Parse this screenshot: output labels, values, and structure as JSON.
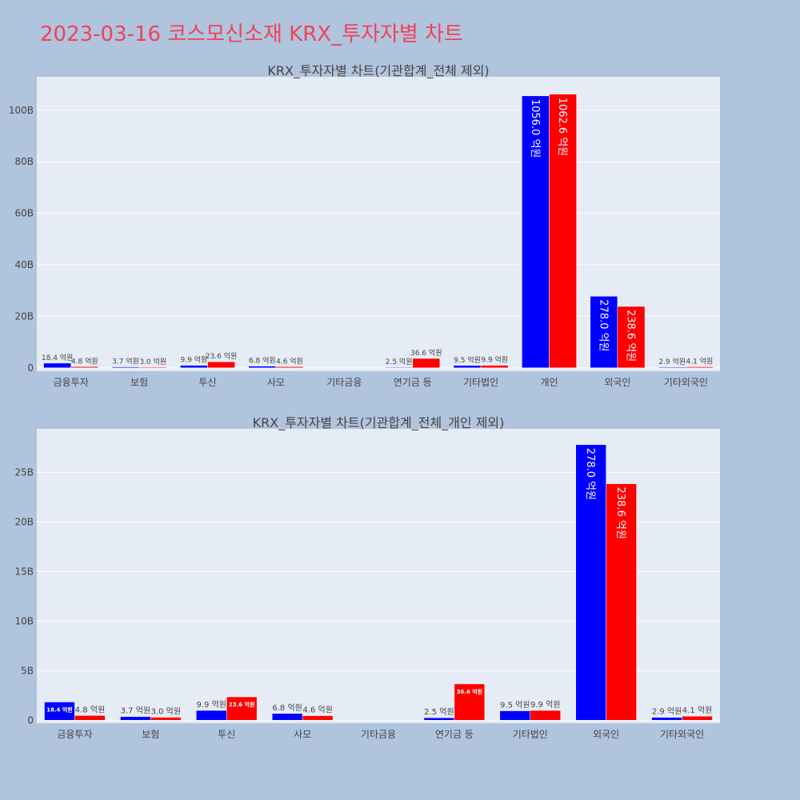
{
  "title": "2023-03-16 코스모신소재 KRX_투자자별 차트",
  "colors": {
    "buy": "#0000ff",
    "sell": "#ff0000",
    "plot_bg": "#e5ecf6",
    "page_bg": "#b0c4de",
    "title": "#ef4358"
  },
  "chart_data": [
    {
      "type": "bar",
      "title": "KRX_투자자별 차트(기관합계_전체 제외)",
      "categories": [
        "금융투자",
        "보험",
        "투신",
        "사모",
        "기타금융",
        "연기금 등",
        "기타법인",
        "개인",
        "외국인",
        "기타외국인"
      ],
      "series": [
        {
          "color": "#0000ff",
          "values": [
            1.84,
            0.37,
            0.99,
            0.68,
            0,
            0.25,
            0.95,
            105.6,
            27.8,
            0.29
          ],
          "labels": [
            "18.4 억원",
            "3.7 억원",
            "9.9 억원",
            "6.8 억원",
            "",
            "2.5 억원",
            "9.5 억원",
            "1056.0 억원",
            "278.0 억원",
            "2.9 억원"
          ]
        },
        {
          "color": "#ff0000",
          "values": [
            0.48,
            0.3,
            2.36,
            0.46,
            0,
            3.66,
            0.99,
            106.26,
            23.86,
            0.41
          ],
          "labels": [
            "4.8 억원",
            "3.0 억원",
            "23.6 억원",
            "4.6 억원",
            "",
            "36.6 억원",
            "9.9 억원",
            "1062.6 억원",
            "238.6 억원",
            "4.1 억원"
          ]
        }
      ],
      "unit": "B",
      "ylim": [
        -1.3,
        113
      ],
      "yticks": [
        0,
        20,
        40,
        60,
        80,
        100
      ],
      "ytick_labels": [
        "0",
        "20B",
        "40B",
        "60B",
        "80B",
        "100B"
      ],
      "grid": true
    },
    {
      "type": "bar",
      "title": "KRX_투자자별 차트(기관합계_전체_개인 제외)",
      "categories": [
        "금융투자",
        "보험",
        "투신",
        "사모",
        "기타금융",
        "연기금 등",
        "기타법인",
        "외국인",
        "기타외국인"
      ],
      "series": [
        {
          "color": "#0000ff",
          "values": [
            1.84,
            0.37,
            0.99,
            0.68,
            0,
            0.25,
            0.95,
            27.8,
            0.29
          ],
          "labels": [
            "18.4 억원",
            "3.7 억원",
            "9.9 억원",
            "6.8 억원",
            "",
            "2.5 억원",
            "9.5 억원",
            "278.0 억원",
            "2.9 억원"
          ]
        },
        {
          "color": "#ff0000",
          "values": [
            0.48,
            0.3,
            2.36,
            0.46,
            0,
            3.66,
            0.99,
            23.86,
            0.41
          ],
          "labels": [
            "4.8 억원",
            "3.0 억원",
            "23.6 억원",
            "4.6 억원",
            "",
            "36.6 억원",
            "9.9 억원",
            "238.6 억원",
            "4.1 억원"
          ]
        }
      ],
      "unit": "B",
      "ylim": [
        -0.3,
        29.4
      ],
      "yticks": [
        0,
        5,
        10,
        15,
        20,
        25
      ],
      "ytick_labels": [
        "0",
        "5B",
        "10B",
        "15B",
        "20B",
        "25B"
      ],
      "grid": true
    }
  ]
}
